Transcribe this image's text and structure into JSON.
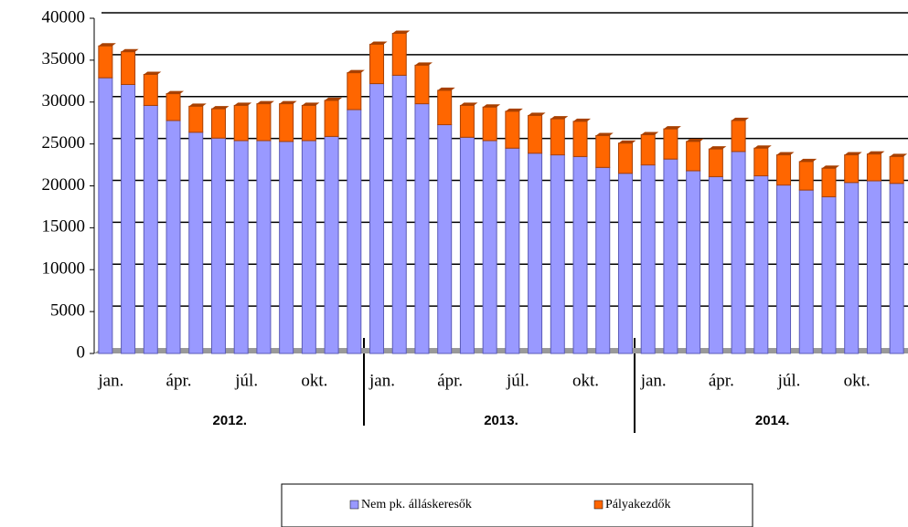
{
  "chart_data": {
    "type": "stacked_bar",
    "categories": [
      "jan.",
      null,
      null,
      "ápr.",
      null,
      null,
      "júl.",
      null,
      null,
      "okt.",
      null,
      null,
      "jan.",
      null,
      null,
      "ápr.",
      null,
      null,
      "júl.",
      null,
      null,
      "okt.",
      null,
      null,
      "jan.",
      null,
      null,
      "ápr.",
      null,
      null,
      "júl.",
      null,
      null,
      "okt.",
      null,
      null
    ],
    "groups": [
      "2012.",
      "2013.",
      "2014."
    ],
    "series": [
      {
        "name": "Nem pk. álláskeresők",
        "color": "#9999ff",
        "values": [
          32900,
          32100,
          29600,
          27800,
          26400,
          25700,
          25400,
          25400,
          25300,
          25400,
          25900,
          29100,
          32200,
          33200,
          29800,
          27300,
          25800,
          25400,
          24500,
          23900,
          23700,
          23500,
          22200,
          21500,
          22500,
          23200,
          21800,
          21100,
          24100,
          21200,
          20100,
          19500,
          18700,
          20400,
          20600,
          20300
        ]
      },
      {
        "name": "Pályakezdők",
        "color": "#ff6600",
        "values": [
          3800,
          3900,
          3700,
          3200,
          3100,
          3500,
          4200,
          4400,
          4500,
          4200,
          4300,
          4400,
          4700,
          5000,
          4600,
          4100,
          3800,
          4000,
          4400,
          4500,
          4300,
          4200,
          3800,
          3600,
          3600,
          3600,
          3500,
          3300,
          3700,
          3300,
          3600,
          3400,
          3400,
          3300,
          3200,
          3200
        ]
      }
    ],
    "ylim": [
      0,
      40000
    ],
    "yticks": [
      0,
      5000,
      10000,
      15000,
      20000,
      25000,
      30000,
      35000,
      40000
    ],
    "grid": true
  }
}
